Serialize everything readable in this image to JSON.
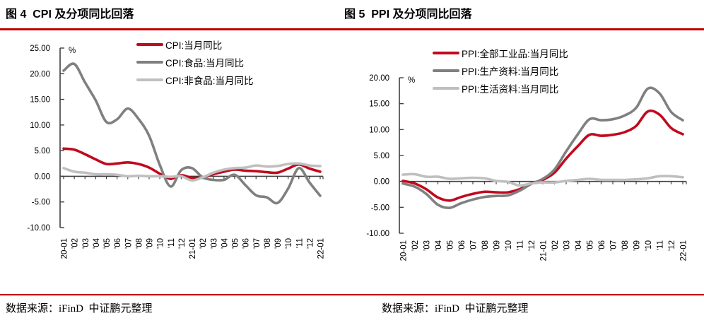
{
  "page": {
    "background": "#FFFFFF",
    "rule_color": "#C00000"
  },
  "footer": {
    "left_source": "数据来源：iFinD  中证鹏元整理",
    "right_source": "数据来源：iFinD  中证鹏元整理"
  },
  "chart_data": [
    {
      "type": "line",
      "title": "图 4  CPI 及分项同比回落",
      "ylabel": "%",
      "grid": false,
      "legend_position": "top-inside",
      "ylim": [
        -10,
        25
      ],
      "y_ticks": [
        {
          "v": 25,
          "label": "25.00"
        },
        {
          "v": 20,
          "label": "20.00"
        },
        {
          "v": 15,
          "label": "15.00"
        },
        {
          "v": 10,
          "label": "10.00"
        },
        {
          "v": 5,
          "label": "5.00"
        },
        {
          "v": 0,
          "label": "0.00"
        },
        {
          "v": -5,
          "label": "-5.00"
        },
        {
          "v": -10,
          "label": "-10.00"
        }
      ],
      "categories": [
        "20-01",
        "'02",
        "'03",
        "'04",
        "'05",
        "'06",
        "'07",
        "'08",
        "'09",
        "'10",
        "'11",
        "'12",
        "21-01",
        "'02",
        "'03",
        "'04",
        "'05",
        "'06",
        "'07",
        "'08",
        "'09",
        "'10",
        "'11",
        "'12",
        "22-01"
      ],
      "series": [
        {
          "name": "CPI:当月同比",
          "color": "#C00A1E",
          "values": [
            5.4,
            5.2,
            4.3,
            3.3,
            2.4,
            2.5,
            2.7,
            2.4,
            1.7,
            0.5,
            -0.5,
            0.2,
            -0.3,
            -0.2,
            0.4,
            0.9,
            1.3,
            1.1,
            1.0,
            0.8,
            0.7,
            1.5,
            2.3,
            1.5,
            0.9
          ]
        },
        {
          "name": "CPI:食品:当月同比",
          "color": "#808080",
          "values": [
            20.6,
            21.9,
            18.3,
            14.8,
            10.6,
            11.1,
            13.2,
            11.2,
            7.9,
            2.2,
            -2.0,
            1.2,
            1.6,
            -0.2,
            -0.7,
            -0.7,
            0.3,
            -1.7,
            -3.7,
            -4.1,
            -5.2,
            -2.4,
            1.6,
            -1.2,
            -3.8
          ]
        },
        {
          "name": "CPI:非食品:当月同比",
          "color": "#BFBFBF",
          "values": [
            1.6,
            0.9,
            0.7,
            0.4,
            0.4,
            0.3,
            0.0,
            0.1,
            0.0,
            0.0,
            -0.1,
            0.0,
            -0.8,
            -0.2,
            0.7,
            1.3,
            1.6,
            1.7,
            2.1,
            1.9,
            2.0,
            2.4,
            2.5,
            2.1,
            2.0
          ]
        }
      ]
    },
    {
      "type": "line",
      "title": "图 5  PPI 及分项同比回落",
      "ylabel": "%",
      "grid": false,
      "legend_position": "top-inside",
      "ylim": [
        -10,
        20
      ],
      "y_ticks": [
        {
          "v": 20,
          "label": "20.00"
        },
        {
          "v": 15,
          "label": "15.00"
        },
        {
          "v": 10,
          "label": "10.00"
        },
        {
          "v": 5,
          "label": "5.00"
        },
        {
          "v": 0,
          "label": "0.00"
        },
        {
          "v": -5,
          "label": "-5.00"
        },
        {
          "v": -10,
          "label": "-10.00"
        }
      ],
      "categories": [
        "20-01",
        "'02",
        "'03",
        "'04",
        "'05",
        "'06",
        "'07",
        "'08",
        "'09",
        "'10",
        "'11",
        "'12",
        "21-01",
        "'02",
        "'03",
        "'04",
        "'05",
        "'06",
        "'07",
        "'08",
        "'09",
        "'10",
        "'11",
        "'12",
        "22-01"
      ],
      "series": [
        {
          "name": "PPI:全部工业品:当月同比",
          "color": "#C00A1E",
          "values": [
            0.1,
            -0.4,
            -1.5,
            -3.1,
            -3.7,
            -3.0,
            -2.4,
            -2.0,
            -2.1,
            -2.1,
            -1.5,
            -0.4,
            0.3,
            1.7,
            4.4,
            6.8,
            9.0,
            8.8,
            9.0,
            9.5,
            10.7,
            13.5,
            12.9,
            10.3,
            9.1
          ]
        },
        {
          "name": "PPI:生产资料:当月同比",
          "color": "#808080",
          "values": [
            -0.4,
            -1.0,
            -2.4,
            -4.5,
            -5.1,
            -4.2,
            -3.5,
            -3.0,
            -2.8,
            -2.7,
            -1.8,
            -0.5,
            0.5,
            2.3,
            5.8,
            9.1,
            12.0,
            11.8,
            12.0,
            12.7,
            14.2,
            17.9,
            17.0,
            13.4,
            11.8
          ]
        },
        {
          "name": "PPI:生活资料:当月同比",
          "color": "#BFBFBF",
          "values": [
            1.3,
            1.4,
            0.9,
            0.9,
            0.5,
            0.6,
            0.7,
            0.6,
            0.1,
            -0.1,
            -0.8,
            -0.4,
            -0.2,
            -0.2,
            0.1,
            0.3,
            0.5,
            0.3,
            0.3,
            0.3,
            0.4,
            0.6,
            1.0,
            1.0,
            0.8
          ]
        }
      ]
    }
  ]
}
